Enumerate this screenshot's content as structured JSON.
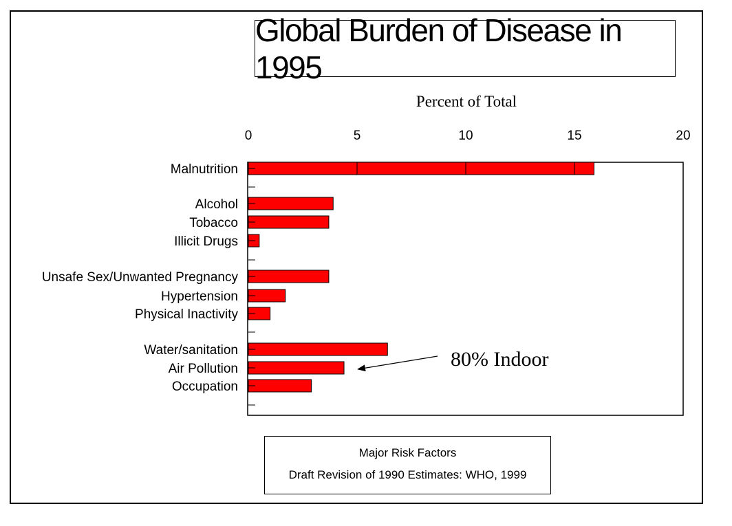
{
  "title": "Global Burden of Disease in 1995",
  "footer": {
    "line1": "Major Risk Factors",
    "line2": "Draft Revision of 1990 Estimates: WHO, 1999"
  },
  "colors": {
    "bar": "#ff0000",
    "bar_edge": "#000000"
  },
  "chart_data": {
    "type": "bar",
    "orientation": "horizontal",
    "title": "Global Burden of Disease in 1995",
    "xlabel": "Percent of Total",
    "xlabel_position": "top",
    "xlim": [
      0,
      20
    ],
    "xticks": [
      0,
      5,
      10,
      15,
      20
    ],
    "grid": false,
    "categories": [
      "Malnutrition",
      "Alcohol",
      "Tobacco",
      "Illicit Drugs",
      "Unsafe Sex/Unwanted Pregnancy",
      "Hypertension",
      "Physical Inactivity",
      "Water/sanitation",
      "Air Pollution",
      "Occupation"
    ],
    "values": [
      15.9,
      3.9,
      3.7,
      0.5,
      3.7,
      1.7,
      1.0,
      6.4,
      4.4,
      2.9
    ],
    "annotations": [
      {
        "text": "80% Indoor",
        "points_to": "Air Pollution"
      }
    ]
  }
}
